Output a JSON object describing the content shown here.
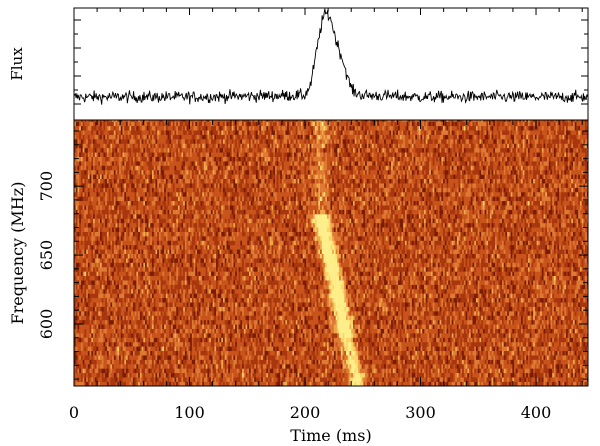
{
  "chart_data": [
    {
      "type": "line",
      "ylabel": "Flux",
      "xlim": [
        0,
        445
      ],
      "series": [
        {
          "description": "Dedispersed pulse profile (arbitrary flux units, baseline ~0, peak ~1)",
          "points": [
            [
              0,
              0.0
            ],
            [
              100,
              0.0
            ],
            [
              200,
              0.02
            ],
            [
              205,
              0.15
            ],
            [
              210,
              0.55
            ],
            [
              215,
              0.92
            ],
            [
              218,
              1.0
            ],
            [
              222,
              0.95
            ],
            [
              226,
              0.72
            ],
            [
              230,
              0.55
            ],
            [
              234,
              0.38
            ],
            [
              238,
              0.18
            ],
            [
              242,
              0.06
            ],
            [
              250,
              0.02
            ],
            [
              300,
              0.0
            ],
            [
              445,
              0.0
            ]
          ]
        }
      ]
    },
    {
      "type": "heatmap",
      "xlabel": "Time (ms)",
      "ylabel": "Frequency (MHz)",
      "xlim": [
        0,
        445
      ],
      "ylim": [
        555,
        748
      ],
      "xticks": [
        0,
        100,
        200,
        300,
        400
      ],
      "yticks": [
        600,
        650,
        700
      ],
      "colormap": [
        "#7a1c05",
        "#a8360e",
        "#c8541c",
        "#de7a33",
        "#f0a84c",
        "#fbd56a",
        "#ffef8a"
      ],
      "signal": {
        "description": "Dispersed burst sweeping from high to low frequency",
        "track": [
          [
            678,
            214
          ],
          [
            650,
            221
          ],
          [
            620,
            229
          ],
          [
            590,
            236
          ],
          [
            560,
            245
          ]
        ],
        "brightest_frequency_range": [
          605,
          675
        ]
      }
    }
  ]
}
